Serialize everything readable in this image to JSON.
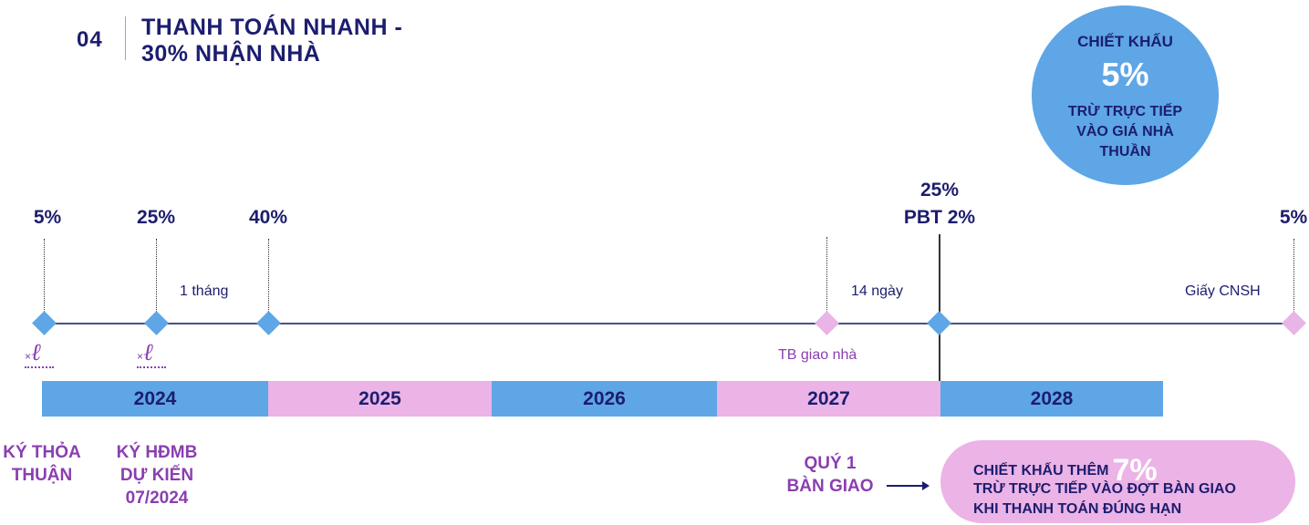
{
  "header": {
    "number": "04",
    "title_line1": "THANH TOÁN NHANH -",
    "title_line2": "30% NHẬN NHÀ"
  },
  "discount_circle": {
    "line1": "CHIẾT KHẤU",
    "value": "5%",
    "line3": "TRỪ TRỰC TIẾP VÀO GIÁ NHÀ THUẦN"
  },
  "milestones": {
    "m1_pct": "5%",
    "m2_pct": "25%",
    "m3_pct": "40%",
    "m4_pct_line1": "25%",
    "m4_pct_line2": "PBT 2%",
    "m5_pct": "5%"
  },
  "interval_labels": {
    "one_month": "1 tháng",
    "fourteen_days": "14 ngày",
    "certificate": "Giấy CNSH",
    "handover_notice": "TB giao nhà"
  },
  "years": [
    "2024",
    "2025",
    "2026",
    "2027",
    "2028"
  ],
  "bottom_labels": {
    "sign_agreement_line1": "KÝ THỎA",
    "sign_agreement_line2": "THUẬN",
    "sign_contract_line1": "KÝ HĐMB",
    "sign_contract_line2": "DỰ KIẾN",
    "sign_contract_line3": "07/2024",
    "handover_line1": "QUÝ 1",
    "handover_line2": "BÀN GIAO"
  },
  "extra_discount": {
    "line1_prefix": "CHIẾT KHẤU THÊM",
    "value": "7%",
    "line2": "TRỪ TRỰC TIẾP VÀO ĐỢT BÀN GIAO",
    "line3": "KHI THANH TOÁN ĐÚNG HẠN"
  },
  "colors": {
    "navy": "#1c1d6e",
    "blue": "#5ea6e6",
    "pink": "#ebb3e6",
    "purple": "#8a3fb0"
  },
  "icons": {
    "signature": "signature-icon",
    "arrow": "arrow-right-icon"
  }
}
